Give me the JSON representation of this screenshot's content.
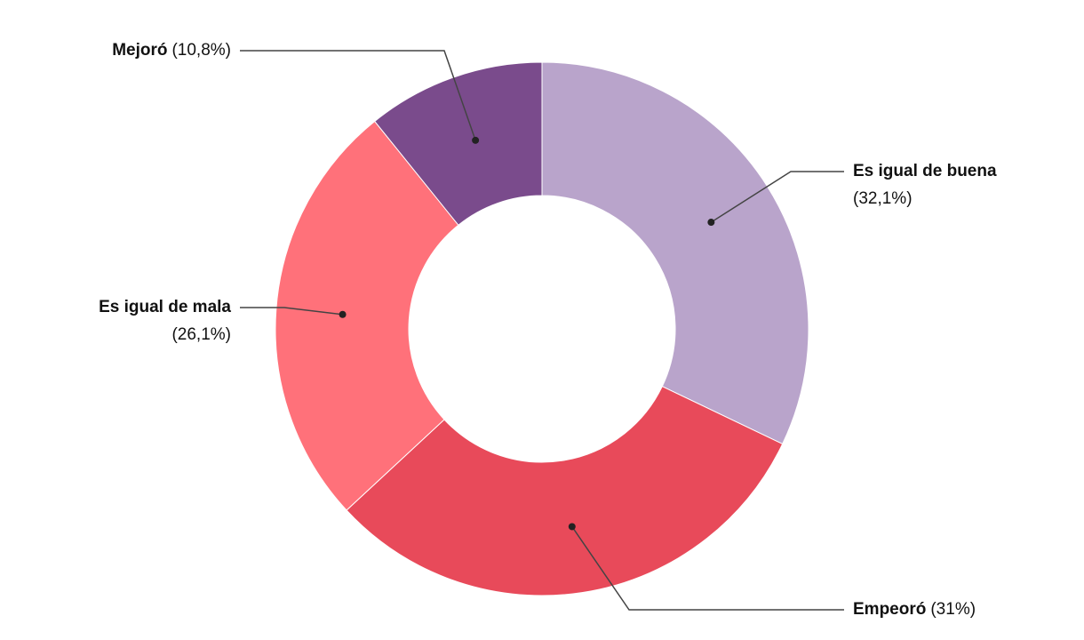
{
  "chart_data": {
    "type": "donut",
    "categories": [
      "Es igual de buena",
      "Empeoró",
      "Es igual de mala",
      "Mejoró"
    ],
    "values": [
      32.1,
      31,
      26.1,
      10.8
    ],
    "value_labels": [
      "(32,1%)",
      "(31%)",
      "(26,1%)",
      "(10,8%)"
    ],
    "colors": [
      "#b9a4cb",
      "#e84a5a",
      "#ff717a",
      "#7a4b8c"
    ]
  }
}
